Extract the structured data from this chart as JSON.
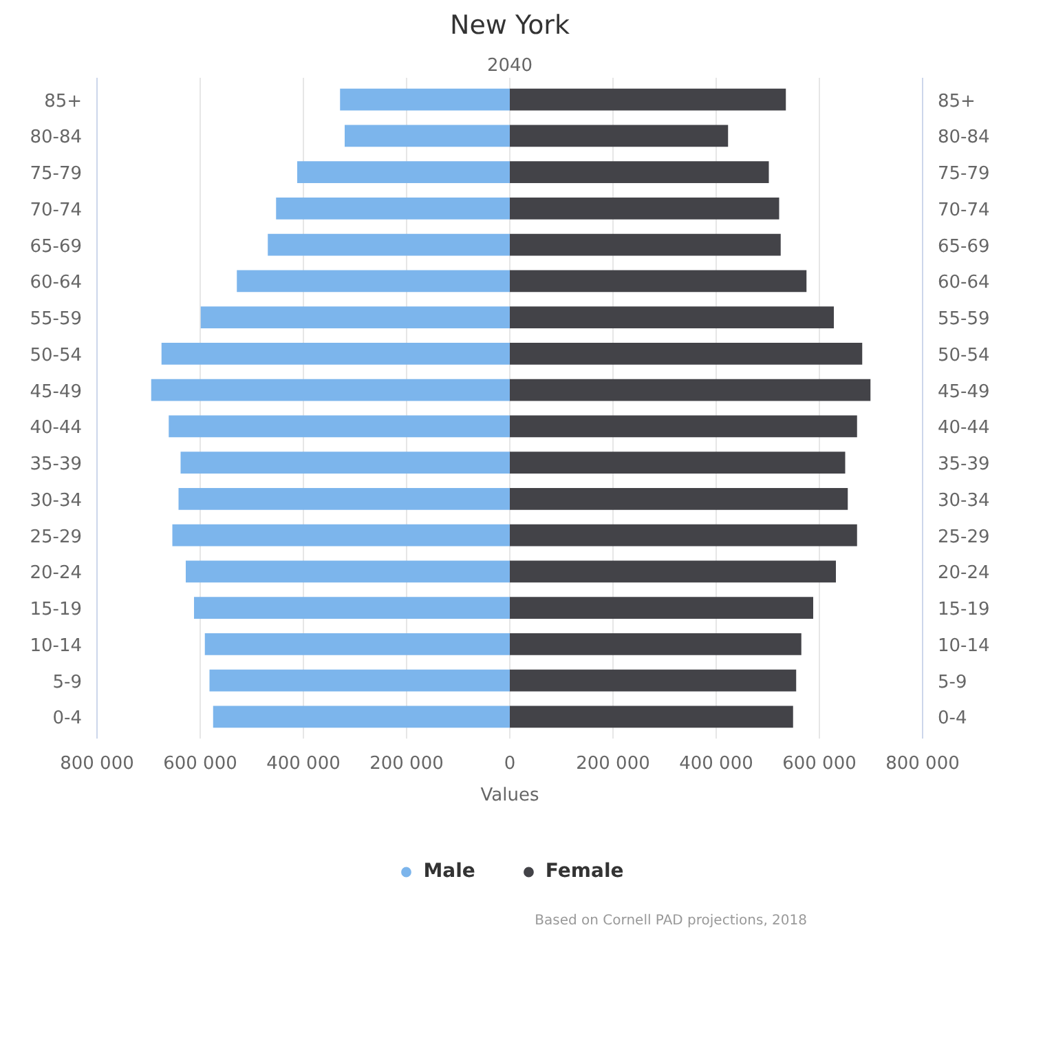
{
  "chart_data": {
    "type": "bar",
    "orientation": "horizontal",
    "title": "New York",
    "subtitle": "2040",
    "xlabel": "Values",
    "categories": [
      "85+",
      "80-84",
      "75-79",
      "70-74",
      "65-69",
      "60-64",
      "55-59",
      "50-54",
      "45-49",
      "40-44",
      "35-39",
      "30-34",
      "25-29",
      "20-24",
      "15-19",
      "10-14",
      "5-9",
      "0-4"
    ],
    "series": [
      {
        "name": "Male",
        "color": "#7cb5ec",
        "values": [
          -329000,
          -320000,
          -412000,
          -453000,
          -469000,
          -529000,
          -599000,
          -675000,
          -695000,
          -661000,
          -638000,
          -642000,
          -654000,
          -628000,
          -612000,
          -591000,
          -582000,
          -575000
        ]
      },
      {
        "name": "Female",
        "color": "#434348",
        "values": [
          535000,
          423000,
          502000,
          522000,
          525000,
          575000,
          628000,
          683000,
          699000,
          673000,
          650000,
          655000,
          673000,
          632000,
          588000,
          565000,
          555000,
          549000
        ]
      }
    ],
    "xlim": [
      -800000,
      800000
    ],
    "xticks": [
      {
        "value": -800000,
        "label": "800 000"
      },
      {
        "value": -600000,
        "label": "600 000"
      },
      {
        "value": -400000,
        "label": "400 000"
      },
      {
        "value": -200000,
        "label": "200 000"
      },
      0,
      {
        "value": 200000,
        "label": "200 000"
      },
      {
        "value": 400000,
        "label": "400 000"
      },
      {
        "value": 600000,
        "label": "600 000"
      },
      {
        "value": 800000,
        "label": "800 000"
      }
    ],
    "grid": "x",
    "legend": "bottom",
    "stacked": true,
    "annotations": [
      "Based on Cornell PAD projections, 2018"
    ]
  }
}
